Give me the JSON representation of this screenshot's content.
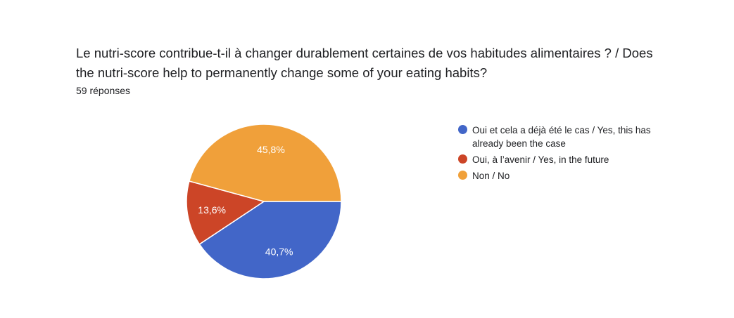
{
  "question": {
    "title_line1": "Le nutri-score contribue-t-il à changer durablement certaines de vos habitudes alimentaires ? / Does",
    "title_line2": "the nutri-score help to permanently change some of your eating habits?",
    "responses": "59 réponses"
  },
  "chart_data": {
    "type": "pie",
    "categories": [
      "Oui et cela a déjà été le cas / Yes, this has already been the case",
      "Oui, à l'avenir / Yes, in the future",
      "Non / No"
    ],
    "values": [
      40.7,
      13.6,
      45.8
    ],
    "labels": [
      "40,7%",
      "13,6%",
      "45,8%"
    ],
    "colors": [
      "#4266c8",
      "#cc4527",
      "#f0a03a"
    ],
    "legend_position": "right"
  },
  "legend": {
    "items": [
      {
        "label": "Oui et cela a déjà été le cas / Yes, this has already been the case",
        "color": "#4266c8"
      },
      {
        "label": "Oui, à l’avenir / Yes, in the future",
        "color": "#cc4527"
      },
      {
        "label": "Non / No",
        "color": "#f0a03a"
      }
    ]
  }
}
